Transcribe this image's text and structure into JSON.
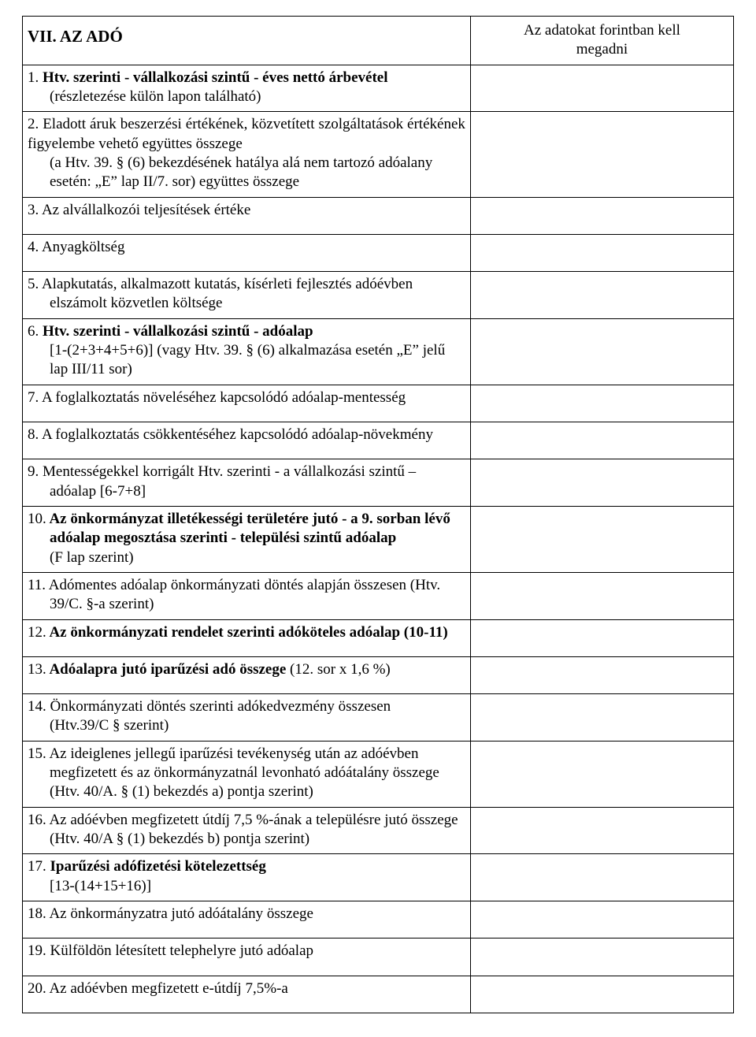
{
  "header": {
    "title": "VII. AZ ADÓ",
    "note_line1": "Az adatokat forintban kell",
    "note_line2": "megadni"
  },
  "rows": [
    {
      "num": "1.",
      "bold_lead": " Htv. szerinti - vállalkozási szintű - éves nettó árbevétel",
      "indent_lines": [
        "(részletezése külön lapon található)"
      ]
    },
    {
      "num": "2.",
      "plain_lead": " Eladott áruk beszerzési értékének, közvetített szolgáltatások értékének figyelembe vehető együttes összege",
      "justify_lead": true,
      "indent_lines": [
        "(a Htv. 39. § (6) bekezdésének hatálya alá nem tartozó adóalany",
        "esetén: „E” lap II/7. sor) együttes összege"
      ]
    },
    {
      "num": "3.",
      "plain_lead": " Az alvállalkozói teljesítések értéke",
      "pad_bottom": true
    },
    {
      "num": "4.",
      "plain_lead": " Anyagköltség",
      "pad_bottom": true
    },
    {
      "num": "5.",
      "plain_lead": " Alapkutatás, alkalmazott kutatás, kísérleti fejlesztés adóévben",
      "indent_lines": [
        "elszámolt közvetlen költsége"
      ]
    },
    {
      "num": "6.",
      "bold_lead": " Htv. szerinti - vállalkozási szintű - adóalap",
      "indent_lines": [
        "[1-(2+3+4+5+6)] (vagy Htv. 39. § (6) alkalmazása esetén „E” jelű",
        "lap III/11 sor)"
      ]
    },
    {
      "num": "7.",
      "plain_lead": " A foglalkoztatás növeléséhez kapcsolódó adóalap-mentesség",
      "pad_bottom": true
    },
    {
      "num": "8.",
      "plain_lead": " A foglalkoztatás csökkentéséhez kapcsolódó adóalap-növekmény",
      "pad_bottom": true
    },
    {
      "num": "9.",
      "plain_lead": " Mentességekkel korrigált Htv. szerinti - a vállalkozási szintű –",
      "indent_lines": [
        "adóalap [6-7+8]"
      ]
    },
    {
      "num": "10.",
      "bold_lead": " Az önkormányzat illetékességi területére jutó - a 9. sorban lévő adóalap megosztása szerinti - települési szintű adóalap",
      "bold_block_hang": true,
      "indent_lines": [
        "(F lap szerint)"
      ]
    },
    {
      "num": "11.",
      "plain_lead": " Adómentes adóalap önkormányzati döntés alapján összesen (Htv.",
      "indent_lines": [
        "39/C. §-a szerint)"
      ]
    },
    {
      "num": "12.",
      "bold_lead": " Az önkormányzati rendelet szerinti adóköteles adóalap (10-11)",
      "pad_bottom": true
    },
    {
      "num": "13.",
      "bold_lead_prefix": " Adóalapra jutó iparűzési adó összege ",
      "plain_tail": "(12. sor x 1,6 %)",
      "pad_bottom": true
    },
    {
      "num": "14.",
      "plain_lead": " Önkormányzati döntés szerinti adókedvezmény összesen",
      "indent_lines": [
        "(Htv.39/C § szerint)"
      ]
    },
    {
      "num": "15.",
      "plain_lead": " Az ideiglenes jellegű iparűzési tevékenység után az adóévben",
      "indent_lines": [
        "megfizetett és az önkormányzatnál levonható adóátalány összege",
        "(Htv. 40/A. § (1) bekezdés a) pontja szerint)"
      ]
    },
    {
      "num": "16.",
      "plain_lead": " Az adóévben megfizetett útdíj 7,5 %-ának a településre jutó összege",
      "indent_lines": [
        "(Htv. 40/A § (1) bekezdés b) pontja szerint)"
      ]
    },
    {
      "num": "17.",
      "bold_lead": " Iparűzési adófizetési kötelezettség",
      "indent_lines": [
        "[13-(14+15+16)]"
      ]
    },
    {
      "num": "18.",
      "plain_lead": " Az önkormányzatra jutó adóátalány összege",
      "pad_bottom": true
    },
    {
      "num": "19.",
      "plain_lead": " Külföldön létesített telephelyre jutó adóalap",
      "pad_bottom": true
    },
    {
      "num": "20.",
      "plain_lead": " Az adóévben megfizetett e-útdíj 7,5%-a",
      "pad_bottom": true
    }
  ]
}
